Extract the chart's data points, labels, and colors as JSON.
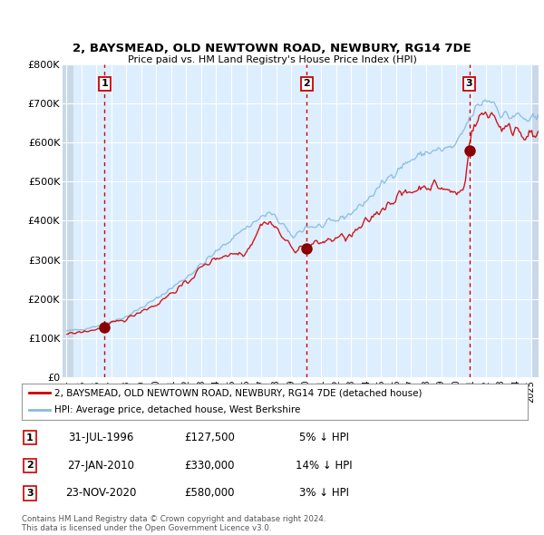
{
  "title1": "2, BAYSMEAD, OLD NEWTOWN ROAD, NEWBURY, RG14 7DE",
  "title2": "Price paid vs. HM Land Registry's House Price Index (HPI)",
  "background_color": "#ffffff",
  "plot_bg_color": "#ddeeff",
  "grid_color": "#ffffff",
  "legend_entries": [
    "2, BAYSMEAD, OLD NEWTOWN ROAD, NEWBURY, RG14 7DE (detached house)",
    "HPI: Average price, detached house, West Berkshire"
  ],
  "table_rows": [
    [
      "1",
      "31-JUL-1996",
      "£127,500",
      "5% ↓ HPI"
    ],
    [
      "2",
      "27-JAN-2010",
      "£330,000",
      "14% ↓ HPI"
    ],
    [
      "3",
      "23-NOV-2020",
      "£580,000",
      "3% ↓ HPI"
    ]
  ],
  "footnote": "Contains HM Land Registry data © Crown copyright and database right 2024.\nThis data is licensed under the Open Government Licence v3.0.",
  "sale_prices": [
    127500,
    330000,
    580000
  ],
  "ylim": [
    0,
    800000
  ],
  "yticks": [
    0,
    100000,
    200000,
    300000,
    400000,
    500000,
    600000,
    700000,
    800000
  ],
  "ytick_labels": [
    "£0",
    "£100K",
    "£200K",
    "£300K",
    "£400K",
    "£500K",
    "£600K",
    "£700K",
    "£800K"
  ],
  "red_line_color": "#cc0000",
  "blue_line_color": "#88bbdd",
  "dot_color": "#880000",
  "vline_color": "#cc0000",
  "xmin": 1993.75,
  "xmax": 2025.5
}
